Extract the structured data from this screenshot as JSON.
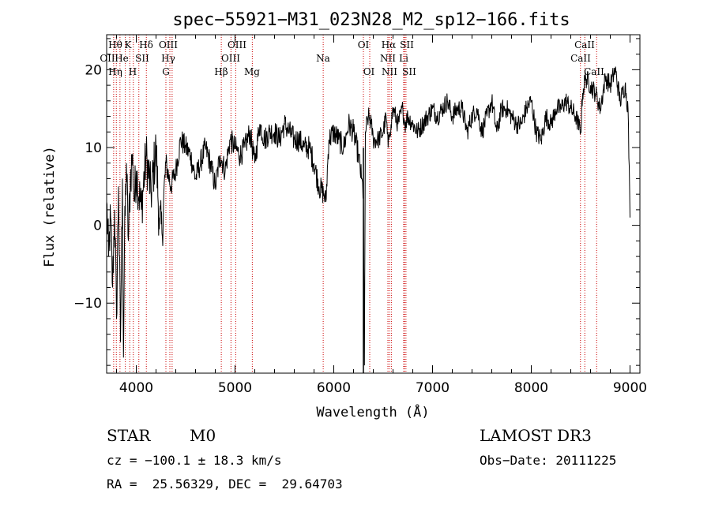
{
  "chart_data": {
    "type": "line",
    "title": "spec−55921−M31_023N28_M2_sp12−166.fits",
    "xlabel": "Wavelength (Å)",
    "ylabel": "Flux (relative)",
    "xlim": [
      3700,
      9100
    ],
    "ylim": [
      -19,
      24.5
    ],
    "xticks": [
      4000,
      5000,
      6000,
      7000,
      8000,
      9000
    ],
    "xtick_labels": [
      "4000",
      "5000",
      "6000",
      "7000",
      "8000",
      "9000"
    ],
    "yticks": [
      -10,
      0,
      10,
      20
    ],
    "ytick_labels": [
      "−10",
      "0",
      "10",
      "20"
    ],
    "series": [
      {
        "name": "flux",
        "x": [
          3700,
          3720,
          3740,
          3760,
          3780,
          3800,
          3820,
          3840,
          3860,
          3870,
          3880,
          3900,
          3920,
          3940,
          3960,
          3980,
          4000,
          4050,
          4100,
          4150,
          4200,
          4230,
          4260,
          4300,
          4350,
          4400,
          4450,
          4500,
          4550,
          4600,
          4650,
          4700,
          4750,
          4800,
          4850,
          4900,
          4950,
          5000,
          5050,
          5100,
          5150,
          5200,
          5250,
          5300,
          5350,
          5400,
          5450,
          5500,
          5550,
          5600,
          5650,
          5700,
          5750,
          5800,
          5850,
          5900,
          5920,
          5950,
          6000,
          6050,
          6100,
          6150,
          6200,
          6250,
          6280,
          6300,
          6310,
          6320,
          6350,
          6380,
          6400,
          6450,
          6500,
          6530,
          6550,
          6563,
          6580,
          6600,
          6650,
          6700,
          6720,
          6750,
          6800,
          6850,
          6900,
          6950,
          7000,
          7050,
          7100,
          7150,
          7200,
          7250,
          7300,
          7350,
          7400,
          7450,
          7500,
          7550,
          7600,
          7650,
          7700,
          7750,
          7800,
          7850,
          7900,
          7950,
          8000,
          8050,
          8100,
          8150,
          8200,
          8250,
          8300,
          8350,
          8400,
          8450,
          8500,
          8520,
          8550,
          8600,
          8650,
          8700,
          8750,
          8800,
          8850,
          8900,
          8950,
          8980,
          9000
        ],
        "values": [
          3,
          -4,
          1,
          -8,
          2,
          -12,
          5,
          -15,
          6,
          -17,
          -3,
          8,
          -2,
          6,
          9,
          3,
          7,
          2,
          9,
          4,
          10,
          1,
          -1,
          8,
          5,
          7,
          11,
          10,
          9,
          6,
          8,
          10,
          8,
          5,
          9,
          7,
          11,
          10,
          9,
          10,
          12,
          8,
          13,
          11,
          12,
          12,
          11,
          13,
          12,
          11,
          11,
          10,
          10,
          8,
          5,
          4,
          3,
          11,
          12,
          11,
          10,
          13,
          12,
          9,
          6,
          4,
          -18,
          12,
          14,
          13,
          11,
          11,
          12,
          14,
          10,
          12,
          13,
          15,
          13,
          15,
          13,
          14,
          13,
          12,
          13,
          14,
          15,
          14,
          15,
          16,
          14,
          15,
          15,
          12,
          14,
          15,
          12,
          14,
          16,
          12,
          15,
          15,
          14,
          13,
          13,
          15,
          16,
          12,
          11,
          14,
          13,
          15,
          15,
          16,
          15,
          14,
          12,
          17,
          19,
          18,
          17,
          15,
          19,
          18,
          20,
          16,
          18,
          15,
          1
        ]
      }
    ],
    "lines_top": [
      "Hθ",
      "K",
      "Hδ",
      "OIII",
      "OIII",
      "OI",
      "Hα",
      "SII",
      "CaII"
    ],
    "lines_mid": [
      "OII",
      "He",
      "SII",
      "Hγ",
      "OIII",
      "Na",
      "NII",
      "Li",
      "CaII"
    ],
    "lines_low": [
      "Hη",
      "H",
      "G",
      "Hβ",
      "Mg",
      "OI",
      "NII",
      "SII",
      "CaII"
    ]
  },
  "info": {
    "object_class": "STAR",
    "subclass": "M0",
    "survey": "LAMOST DR3",
    "cz": "cz = −100.1 ± 18.3 km/s",
    "obs_date": "Obs−Date: 20111225",
    "coords": "RA =  25.56329, DEC =  29.64703"
  }
}
